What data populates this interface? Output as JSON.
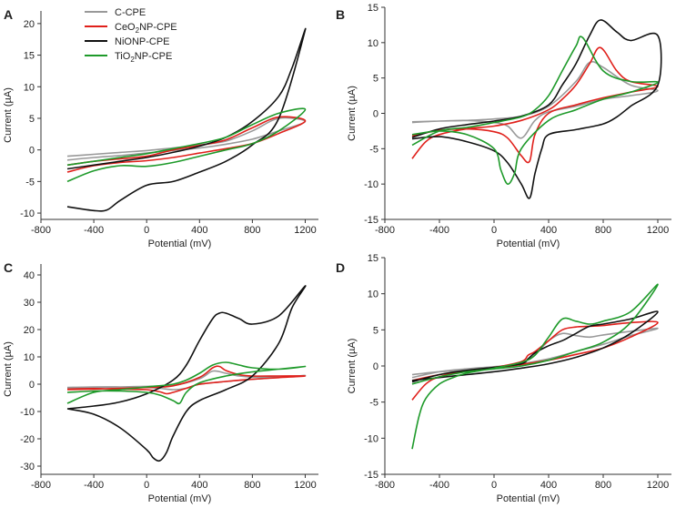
{
  "figure": {
    "legend": [
      {
        "key": "C",
        "parts": [
          "C-CPE"
        ],
        "color": "#999999"
      },
      {
        "key": "Ce",
        "parts": [
          "CeO",
          "2",
          "NP-CPE"
        ],
        "color": "#e0201b"
      },
      {
        "key": "Ni",
        "parts": [
          "NiONP-CPE"
        ],
        "color": "#111111"
      },
      {
        "key": "Ti",
        "parts": [
          "TiO",
          "2",
          "NP-CPE"
        ],
        "color": "#1e9a2a"
      }
    ]
  },
  "chart_data": [
    {
      "panel": "A",
      "type": "line",
      "xlabel": "Potential (mV)",
      "ylabel": "Current (µA)",
      "xlim": [
        -800,
        1300
      ],
      "ylim": [
        -11,
        22
      ],
      "xticks": [
        -800,
        -400,
        0,
        400,
        800,
        1200
      ],
      "yticks": [
        -10,
        -5,
        0,
        5,
        10,
        15,
        20
      ],
      "series": [
        {
          "name": "C-CPE",
          "x": [
            -600,
            -400,
            -200,
            0,
            200,
            400,
            600,
            800,
            1000,
            1200,
            1000,
            800,
            600,
            400,
            200,
            0,
            -200,
            -400,
            -600
          ],
          "y": [
            -1.6,
            -1.2,
            -0.9,
            -0.5,
            -0.1,
            0.3,
            0.9,
            1.7,
            3,
            4.5,
            5,
            3,
            1.4,
            0.8,
            0.3,
            -0.1,
            -0.4,
            -0.7,
            -1
          ]
        },
        {
          "name": "CeO2NP-CPE",
          "x": [
            -600,
            -400,
            -200,
            0,
            200,
            400,
            600,
            800,
            1000,
            1200,
            1000,
            800,
            600,
            400,
            200,
            0,
            -200,
            -400,
            -600
          ],
          "y": [
            -3.5,
            -2.5,
            -2,
            -1.7,
            -1.2,
            -0.5,
            0.2,
            1,
            2.6,
            4.6,
            5.2,
            3.5,
            1.6,
            0.7,
            0,
            -1,
            -1.4,
            -1.8,
            -2.4
          ]
        },
        {
          "name": "NiONP-CPE",
          "x": [
            -600,
            -400,
            -300,
            -200,
            0,
            200,
            400,
            600,
            800,
            1000,
            1200,
            1100,
            1000,
            800,
            600,
            400,
            200,
            0,
            -200,
            -400,
            -600
          ],
          "y": [
            -9,
            -9.6,
            -9.5,
            -8,
            -5.6,
            -5,
            -3.5,
            -1.8,
            0.8,
            5,
            19,
            13,
            8.5,
            4.5,
            2,
            0.6,
            -0.4,
            -1.2,
            -1.8,
            -2.4,
            -3
          ]
        },
        {
          "name": "TiO2NP-CPE",
          "x": [
            -600,
            -400,
            -200,
            0,
            200,
            400,
            600,
            800,
            1000,
            1200,
            1000,
            800,
            600,
            400,
            200,
            0,
            -200,
            -400,
            -600
          ],
          "y": [
            -5,
            -3.3,
            -2.5,
            -2.6,
            -2,
            -1,
            0,
            1,
            3,
            6.4,
            5.8,
            4,
            2,
            1,
            0.2,
            -0.6,
            -1.2,
            -1.8,
            -2.4
          ]
        }
      ]
    },
    {
      "panel": "B",
      "type": "line",
      "xlabel": "Potential (mV)",
      "ylabel": "Current (µA)",
      "xlim": [
        -800,
        1300
      ],
      "ylim": [
        -15,
        15
      ],
      "xticks": [
        -800,
        -400,
        0,
        400,
        800,
        1200
      ],
      "yticks": [
        -15,
        -10,
        -5,
        0,
        5,
        10,
        15
      ],
      "series": [
        {
          "name": "C-CPE",
          "x": [
            -600,
            -400,
            -200,
            0,
            200,
            400,
            600,
            700,
            800,
            1000,
            1200,
            1000,
            800,
            600,
            400,
            300,
            200,
            100,
            0,
            -200,
            -400,
            -600
          ],
          "y": [
            -1.3,
            -1.1,
            -1,
            -0.8,
            -0.4,
            1,
            4.5,
            7.2,
            6.5,
            4,
            3.2,
            2.5,
            2,
            1,
            0.2,
            -1,
            -3.5,
            -1.8,
            -1.3,
            -1,
            -1.1,
            -1.2
          ]
        },
        {
          "name": "CeO2NP-CPE",
          "x": [
            -600,
            -500,
            -400,
            -200,
            0,
            200,
            400,
            500,
            600,
            700,
            780,
            900,
            1000,
            1200,
            1000,
            800,
            600,
            400,
            300,
            260,
            200,
            100,
            0,
            -200,
            -400,
            -600
          ],
          "y": [
            -6.4,
            -4,
            -3,
            -2.2,
            -1.8,
            -1,
            0.5,
            2,
            4,
            7,
            9.3,
            6,
            4.5,
            3.8,
            3,
            2.2,
            1.2,
            0,
            -3,
            -6.8,
            -6,
            -3.5,
            -2.6,
            -2.2,
            -2.4,
            -3.2
          ]
        },
        {
          "name": "NiONP-CPE",
          "x": [
            -600,
            -400,
            -200,
            0,
            200,
            400,
            500,
            600,
            700,
            780,
            900,
            1000,
            1200,
            1200,
            1000,
            900,
            800,
            600,
            400,
            350,
            300,
            260,
            200,
            100,
            0,
            -200,
            -400,
            -600
          ],
          "y": [
            -3.4,
            -2.2,
            -1.6,
            -1.1,
            -0.4,
            1.2,
            4,
            7,
            11,
            13.2,
            11.5,
            10.3,
            11,
            4,
            1,
            -0.5,
            -1.5,
            -2.3,
            -3,
            -5,
            -8.5,
            -12,
            -10,
            -7,
            -5.3,
            -4,
            -3.3,
            -3.6
          ]
        },
        {
          "name": "TiO2NP-CPE",
          "x": [
            -600,
            -400,
            -200,
            0,
            200,
            300,
            400,
            500,
            600,
            650,
            800,
            1000,
            1200,
            1000,
            800,
            600,
            400,
            200,
            150,
            100,
            50,
            0,
            -200,
            -400,
            -600
          ],
          "y": [
            -4.5,
            -2.5,
            -2,
            -1.3,
            -0.5,
            0.5,
            2.5,
            6,
            9.5,
            10.7,
            6,
            4.5,
            4.4,
            3,
            2,
            0.5,
            -1,
            -5,
            -8.5,
            -10,
            -8,
            -5,
            -3,
            -2.5,
            -3
          ]
        }
      ]
    },
    {
      "panel": "C",
      "type": "line",
      "xlabel": "Potential (mV)",
      "ylabel": "Current (µA)",
      "xlim": [
        -800,
        1300
      ],
      "ylim": [
        -33,
        44
      ],
      "xticks": [
        -800,
        -400,
        0,
        400,
        800,
        1200
      ],
      "yticks": [
        -30,
        -20,
        -10,
        0,
        10,
        20,
        30,
        40
      ],
      "series": [
        {
          "name": "C-CPE",
          "x": [
            -600,
            -400,
            -200,
            0,
            200,
            400,
            500,
            600,
            700,
            800,
            1000,
            1200,
            1000,
            800,
            600,
            400,
            300,
            200,
            100,
            0,
            -200,
            -400,
            -600
          ],
          "y": [
            -1.5,
            -1.2,
            -1,
            -0.8,
            -0.5,
            2,
            4.8,
            4,
            3,
            2.6,
            2.6,
            3.2,
            2.5,
            1.8,
            1,
            0,
            -1.5,
            -2,
            -1.5,
            -1.2,
            -1,
            -1,
            -1.2
          ]
        },
        {
          "name": "CeO2NP-CPE",
          "x": [
            -600,
            -400,
            -200,
            0,
            200,
            400,
            500,
            550,
            600,
            700,
            800,
            1000,
            1200,
            1000,
            800,
            600,
            400,
            300,
            200,
            150,
            100,
            0,
            -200,
            -400,
            -600
          ],
          "y": [
            -2,
            -1.8,
            -1.5,
            -1.2,
            -0.6,
            2.5,
            6,
            6.5,
            5,
            3.5,
            3,
            3,
            3,
            2.4,
            1.8,
            1,
            0,
            -1.5,
            -3,
            -3.5,
            -2.8,
            -2,
            -1.8,
            -1.6,
            -1.8
          ]
        },
        {
          "name": "NiONP-CPE",
          "x": [
            -600,
            -400,
            -200,
            0,
            200,
            300,
            400,
            500,
            550,
            600,
            700,
            800,
            1000,
            1200,
            1100,
            1000,
            800,
            600,
            400,
            300,
            200,
            150,
            100,
            50,
            0,
            -200,
            -400,
            -600
          ],
          "y": [
            -9,
            -8,
            -6.5,
            -3.5,
            1.5,
            7,
            16,
            24,
            26,
            26,
            24,
            22,
            25,
            36,
            28,
            15,
            3,
            -2,
            -6,
            -10,
            -19,
            -25,
            -28,
            -27,
            -24,
            -16,
            -11,
            -9
          ]
        },
        {
          "name": "TiO2NP-CPE",
          "x": [
            -600,
            -400,
            -200,
            0,
            200,
            300,
            400,
            500,
            600,
            700,
            800,
            1000,
            1200,
            1000,
            800,
            600,
            400,
            300,
            250,
            200,
            100,
            0,
            -200,
            -400,
            -600
          ],
          "y": [
            -7,
            -3,
            -2,
            -1,
            0,
            1.5,
            4,
            7,
            8,
            7,
            6,
            5.5,
            6.5,
            5.5,
            4.5,
            3,
            0.5,
            -3,
            -7,
            -6,
            -4,
            -3,
            -2.5,
            -2.5,
            -3
          ]
        }
      ]
    },
    {
      "panel": "D",
      "type": "line",
      "xlabel": "Potential (mV)",
      "ylabel": "Current (µA)",
      "xlim": [
        -800,
        1300
      ],
      "ylim": [
        -15,
        15
      ],
      "xticks": [
        -800,
        -400,
        0,
        400,
        800,
        1200
      ],
      "yticks": [
        -15,
        -10,
        -5,
        0,
        5,
        10,
        15
      ],
      "series": [
        {
          "name": "C-CPE",
          "x": [
            -600,
            -400,
            -200,
            0,
            200,
            250,
            300,
            400,
            500,
            600,
            700,
            800,
            1000,
            1200,
            1000,
            800,
            600,
            400,
            200,
            0,
            -200,
            -400,
            -600
          ],
          "y": [
            -1.6,
            -0.8,
            -0.4,
            -0.1,
            0.3,
            1,
            1.5,
            3.5,
            4.5,
            4.2,
            4,
            4.3,
            4.8,
            5.2,
            4.2,
            3,
            2,
            1,
            0.3,
            -0.3,
            -0.6,
            -0.8,
            -1.2
          ]
        },
        {
          "name": "CeO2NP-CPE",
          "x": [
            -600,
            -500,
            -400,
            -200,
            0,
            200,
            250,
            300,
            400,
            500,
            600,
            700,
            800,
            1000,
            1200,
            1000,
            800,
            600,
            400,
            200,
            0,
            -200,
            -400,
            -600
          ],
          "y": [
            -4.7,
            -2.5,
            -1.5,
            -0.7,
            -0.2,
            0.6,
            1.5,
            2,
            3.5,
            5,
            5.4,
            5.5,
            5.6,
            6,
            6,
            4,
            2.5,
            1.6,
            0.8,
            0.2,
            -0.3,
            -0.7,
            -1.2,
            -2
          ]
        },
        {
          "name": "NiONP-CPE",
          "x": [
            -600,
            -400,
            -200,
            0,
            200,
            250,
            300,
            400,
            500,
            550,
            600,
            700,
            800,
            1000,
            1200,
            1000,
            800,
            600,
            400,
            200,
            0,
            -200,
            -400,
            -600
          ],
          "y": [
            -2.2,
            -1.2,
            -0.6,
            -0.2,
            0.3,
            1,
            1.8,
            2.8,
            3.5,
            4,
            4.5,
            5.5,
            5.8,
            6.5,
            7.5,
            4.5,
            2.5,
            1.2,
            0.3,
            -0.3,
            -0.8,
            -1.2,
            -1.6,
            -2
          ]
        },
        {
          "name": "TiO2NP-CPE",
          "x": [
            -600,
            -550,
            -500,
            -400,
            -300,
            -200,
            0,
            200,
            300,
            400,
            500,
            600,
            700,
            800,
            1000,
            1200,
            1000,
            800,
            600,
            400,
            200,
            0,
            -200,
            -400,
            -600
          ],
          "y": [
            -11.5,
            -7,
            -4.5,
            -2.5,
            -1.6,
            -1,
            -0.3,
            0.5,
            1.5,
            4,
            6.5,
            6.2,
            5.8,
            6.2,
            7.5,
            11.3,
            6,
            3.3,
            2,
            0.8,
            0,
            -0.4,
            -0.8,
            -1.5,
            -2.5
          ]
        }
      ]
    }
  ]
}
